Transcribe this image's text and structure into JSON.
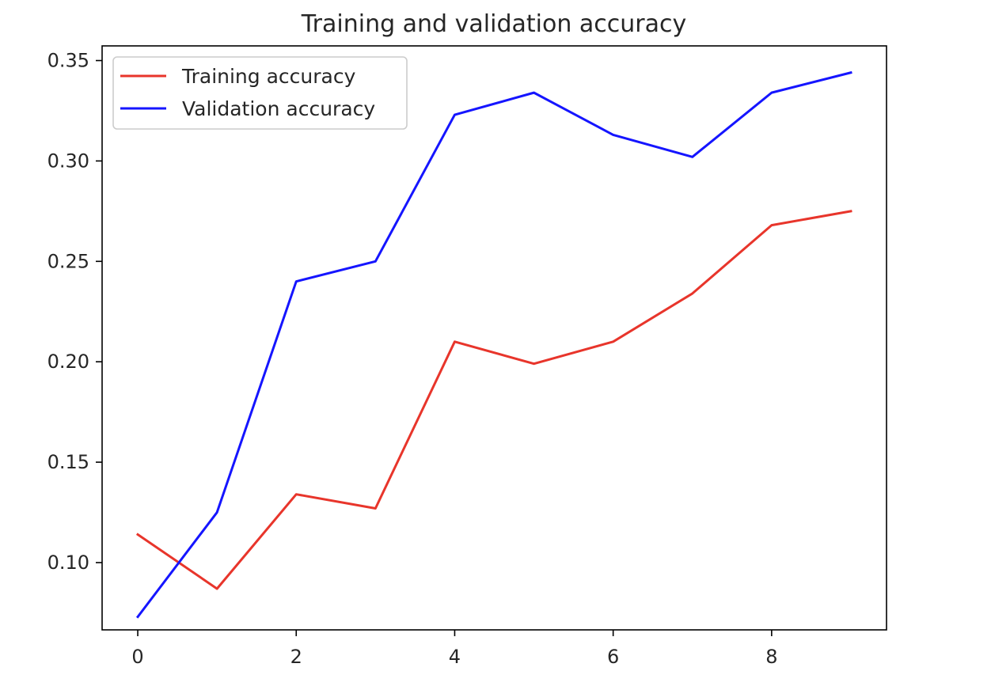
{
  "chart_data": {
    "type": "line",
    "title": "Training and validation accuracy",
    "xlabel": "",
    "ylabel": "",
    "x": [
      0,
      1,
      2,
      3,
      4,
      5,
      6,
      7,
      8,
      9
    ],
    "xlim": [
      -0.45,
      9.45
    ],
    "ylim": [
      0.0665,
      0.3573
    ],
    "xticks": [
      0,
      2,
      4,
      6,
      8
    ],
    "xtick_labels": [
      "0",
      "2",
      "4",
      "6",
      "8"
    ],
    "yticks": [
      0.1,
      0.15,
      0.2,
      0.25,
      0.3,
      0.35
    ],
    "ytick_labels": [
      "0.10",
      "0.15",
      "0.20",
      "0.25",
      "0.30",
      "0.35"
    ],
    "grid": false,
    "legend_position": "upper-left",
    "series": [
      {
        "name": "Training accuracy",
        "color": "#e8352b",
        "values": [
          0.114,
          0.087,
          0.134,
          0.127,
          0.21,
          0.199,
          0.21,
          0.234,
          0.268,
          0.275
        ]
      },
      {
        "name": "Validation accuracy",
        "color": "#1515ff",
        "values": [
          0.073,
          0.125,
          0.24,
          0.25,
          0.323,
          0.334,
          0.313,
          0.302,
          0.334,
          0.344
        ]
      }
    ]
  }
}
